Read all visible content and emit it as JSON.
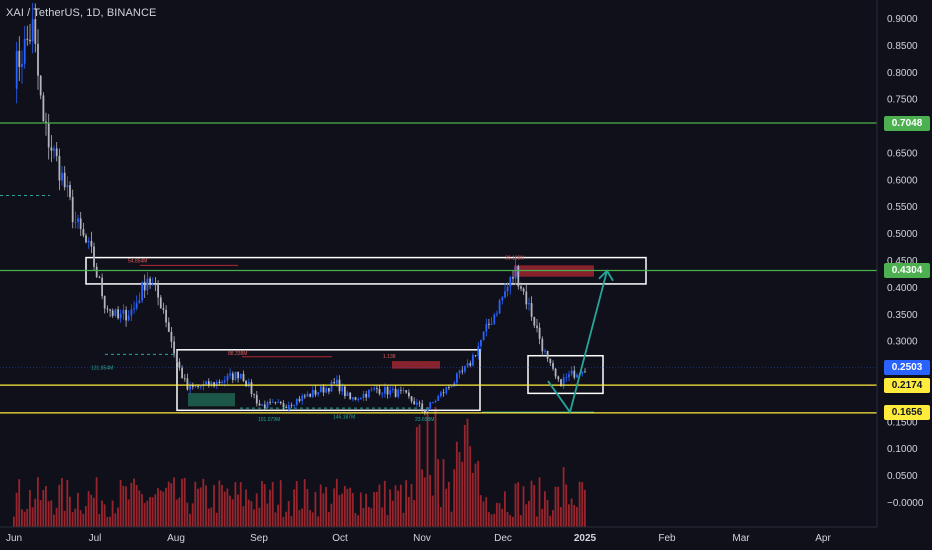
{
  "header": {
    "title": "XAI / TetherUS, 1D, BINANCE"
  },
  "colors": {
    "background": "#0f1019",
    "candle_up": "#2962ff",
    "candle_down": "#b2b5be",
    "volume": "#b22833",
    "green_line": "#4caf50",
    "yellow_line": "#ffeb3b",
    "box": "#ffffff",
    "arrow": "#26a69a"
  },
  "price_axis": {
    "ticks": [
      "0.9000",
      "0.8500",
      "0.8000",
      "0.7500",
      "0.6500",
      "0.6000",
      "0.5500",
      "0.5000",
      "0.4500",
      "0.4000",
      "0.3500",
      "0.3000",
      "0.1500",
      "0.1000",
      "0.0500",
      "−0.0000"
    ],
    "tick_values": [
      0.9,
      0.85,
      0.8,
      0.75,
      0.65,
      0.6,
      0.55,
      0.5,
      0.45,
      0.4,
      0.35,
      0.3,
      0.15,
      0.1,
      0.05,
      0.0
    ],
    "range": [
      -0.02,
      0.93
    ]
  },
  "time_axis": {
    "labels": [
      "Jun",
      "Jul",
      "Aug",
      "Sep",
      "Oct",
      "Nov",
      "Dec",
      "2025",
      "Feb",
      "Mar",
      "Apr"
    ]
  },
  "levels": [
    {
      "name": "resistance-high",
      "price": 0.7048,
      "label": "0.7048",
      "color": "#4caf50"
    },
    {
      "name": "resistance-mid",
      "price": 0.4304,
      "label": "0.4304",
      "color": "#4caf50"
    },
    {
      "name": "current-price",
      "price": 0.2503,
      "label": "0.2503",
      "color": "#2962ff"
    },
    {
      "name": "support-upper",
      "price": 0.2174,
      "label": "0.2174",
      "color": "#ffeb3b"
    },
    {
      "name": "support-lower",
      "price": 0.1656,
      "label": "0.1656",
      "color": "#ffeb3b"
    }
  ],
  "annotations": {
    "vol_labels": [
      "54.854M",
      "131.854M",
      "88.338M",
      "1.138",
      "30.109M",
      "101.079M",
      "146.187M",
      "23.658M"
    ]
  },
  "chart_data": {
    "type": "candlestick",
    "title": "XAI / TetherUS, 1D, BINANCE",
    "x_start": "2024-06-01",
    "x_end": "2024-12-31",
    "close_path": [
      [
        "2024-06-01",
        0.8
      ],
      [
        "2024-06-08",
        0.88
      ],
      [
        "2024-06-12",
        0.7
      ],
      [
        "2024-06-18",
        0.62
      ],
      [
        "2024-06-24",
        0.52
      ],
      [
        "2024-06-30",
        0.46
      ],
      [
        "2024-07-05",
        0.37
      ],
      [
        "2024-07-10",
        0.34
      ],
      [
        "2024-07-16",
        0.36
      ],
      [
        "2024-07-21",
        0.42
      ],
      [
        "2024-07-27",
        0.36
      ],
      [
        "2024-08-01",
        0.26
      ],
      [
        "2024-08-05",
        0.21
      ],
      [
        "2024-08-15",
        0.22
      ],
      [
        "2024-08-25",
        0.24
      ],
      [
        "2024-09-01",
        0.18
      ],
      [
        "2024-09-10",
        0.18
      ],
      [
        "2024-09-20",
        0.2
      ],
      [
        "2024-09-30",
        0.22
      ],
      [
        "2024-10-05",
        0.19
      ],
      [
        "2024-10-15",
        0.21
      ],
      [
        "2024-10-25",
        0.2
      ],
      [
        "2024-11-02",
        0.17
      ],
      [
        "2024-11-10",
        0.21
      ],
      [
        "2024-11-18",
        0.25
      ],
      [
        "2024-11-26",
        0.33
      ],
      [
        "2024-12-06",
        0.43
      ],
      [
        "2024-12-12",
        0.35
      ],
      [
        "2024-12-18",
        0.26
      ],
      [
        "2024-12-22",
        0.22
      ],
      [
        "2024-12-31",
        0.2503
      ]
    ]
  }
}
